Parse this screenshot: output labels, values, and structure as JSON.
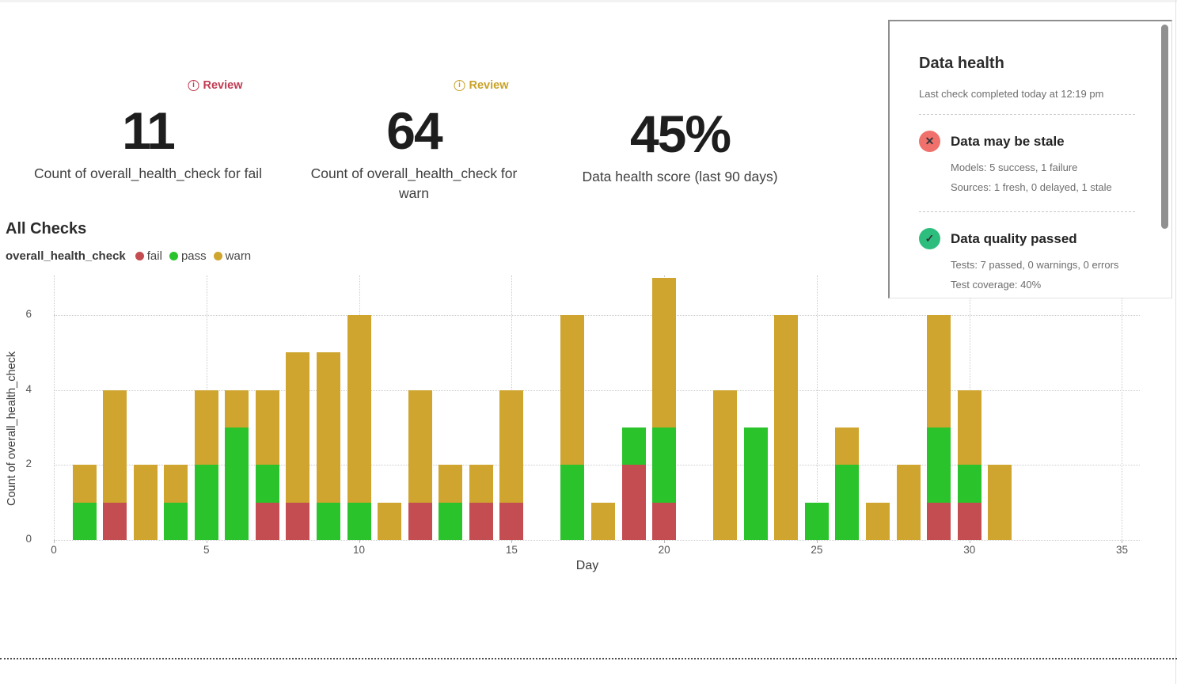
{
  "metrics": [
    {
      "badge": "Review",
      "badge_color": "#c23b52",
      "value": "11",
      "label": "Count of overall_health_check for fail"
    },
    {
      "badge": "Review",
      "badge_color": "#c9a227",
      "value": "64",
      "label": "Count of overall_health_check for warn"
    },
    {
      "value": "45%",
      "label": "Data health score (last 90 days)"
    }
  ],
  "health_panel": {
    "title": "Data health",
    "subtitle": "Last check completed today at 12:19 pm",
    "items": [
      {
        "icon": "x-circle",
        "icon_bg": "#f0706b",
        "icon_glyph": "✕",
        "title": "Data may be stale",
        "details": [
          "Models: 5 success, 1 failure",
          "Sources: 1 fresh, 0 delayed, 1 stale"
        ]
      },
      {
        "icon": "check-circle",
        "icon_bg": "#2dbe7d",
        "icon_glyph": "✓",
        "title": "Data quality passed",
        "details": [
          "Tests: 7 passed, 0 warnings, 0 errors",
          "Test coverage: 40%"
        ]
      }
    ]
  },
  "section_title": "All Checks",
  "legend": {
    "series_name": "overall_health_check",
    "entries": [
      {
        "label": "fail",
        "color": "#c44d52"
      },
      {
        "label": "pass",
        "color": "#2bc32b"
      },
      {
        "label": "warn",
        "color": "#cfa52f"
      }
    ]
  },
  "chart_data": {
    "type": "bar",
    "stacked": true,
    "title": "All Checks",
    "xlabel": "Day",
    "ylabel": "Count of overall_health_check",
    "xlim": [
      0,
      35
    ],
    "ylim": [
      0,
      7
    ],
    "xticks": [
      0,
      5,
      10,
      15,
      20,
      25,
      30,
      35
    ],
    "yticks": [
      0,
      2,
      4,
      6
    ],
    "grid": true,
    "legend_position": "top-left",
    "categories": [
      1,
      2,
      3,
      4,
      5,
      6,
      7,
      8,
      9,
      10,
      11,
      12,
      13,
      14,
      15,
      16,
      17,
      18,
      19,
      20,
      21,
      22,
      23,
      24,
      25,
      26,
      27,
      28,
      29,
      30,
      31
    ],
    "series": [
      {
        "name": "fail",
        "color": "#c44d52",
        "values": [
          0,
          1,
          0,
          0,
          0,
          0,
          1,
          1,
          0,
          0,
          0,
          1,
          0,
          1,
          1,
          0,
          0,
          0,
          2,
          1,
          0,
          0,
          0,
          0,
          0,
          0,
          0,
          0,
          1,
          1,
          0
        ]
      },
      {
        "name": "pass",
        "color": "#2bc32b",
        "values": [
          1,
          0,
          0,
          1,
          2,
          3,
          1,
          0,
          1,
          1,
          0,
          0,
          1,
          0,
          0,
          0,
          2,
          0,
          1,
          2,
          0,
          0,
          3,
          0,
          1,
          2,
          0,
          0,
          2,
          1,
          0
        ]
      },
      {
        "name": "warn",
        "color": "#cfa52f",
        "values": [
          1,
          3,
          2,
          1,
          2,
          1,
          2,
          4,
          4,
          5,
          1,
          3,
          1,
          1,
          3,
          0,
          4,
          1,
          0,
          4,
          0,
          4,
          0,
          6,
          0,
          1,
          1,
          2,
          3,
          2,
          2
        ]
      }
    ],
    "series_totals": {
      "fail": 11,
      "pass": 25,
      "warn": 64
    }
  }
}
